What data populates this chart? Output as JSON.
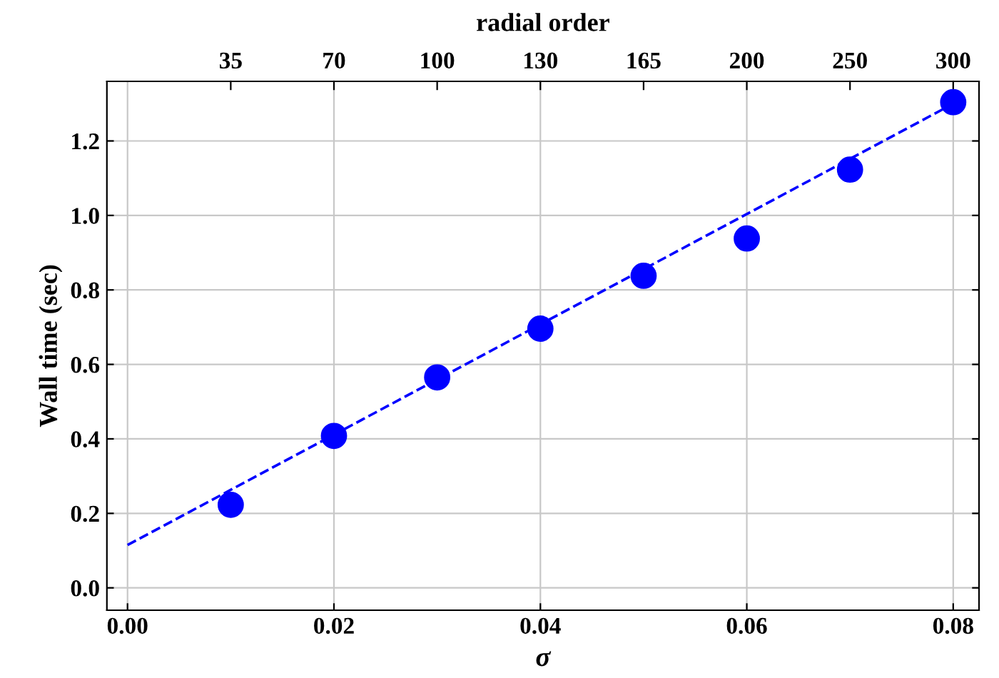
{
  "chart_data": {
    "type": "scatter",
    "xlabel": "σ",
    "ylabel": "Wall time (sec)",
    "x2label": "radial order",
    "series": [
      {
        "color": "#0000ff",
        "marker": "circle",
        "x": [
          0.01,
          0.02,
          0.03,
          0.04,
          0.05,
          0.06,
          0.07,
          0.08
        ],
        "values": [
          0.223,
          0.408,
          0.565,
          0.696,
          0.838,
          0.938,
          1.123,
          1.304
        ]
      },
      {
        "type": "line",
        "color": "#0000ff",
        "line_style": "dashed",
        "marker": "none",
        "x": [
          0.0,
          0.08
        ],
        "values": [
          0.115,
          1.3
        ]
      }
    ],
    "xlim": [
      -0.002,
      0.0825
    ],
    "xticks": [
      {
        "value": 0.0,
        "label": "0.00"
      },
      0.02,
      0.04,
      0.06,
      0.08
    ],
    "annotations": [
      {
        "text": "35",
        "x": 0.01
      },
      {
        "text": "70",
        "x": 0.02
      },
      {
        "text": "100",
        "x": 0.03
      },
      {
        "text": "130",
        "x": 0.04
      },
      {
        "text": "165",
        "x": 0.05
      },
      {
        "text": "200",
        "x": 0.06
      },
      {
        "text": "250",
        "x": 0.07
      },
      {
        "text": "300",
        "x": 0.08
      }
    ],
    "ylim": [
      -0.06,
      1.36
    ],
    "yticks": [
      {
        "value": 0.0,
        "label": "0.0"
      },
      0.2,
      0.4,
      0.6,
      0.8,
      {
        "value": 1.0,
        "label": "1.0"
      },
      1.2
    ],
    "grid": true
  }
}
